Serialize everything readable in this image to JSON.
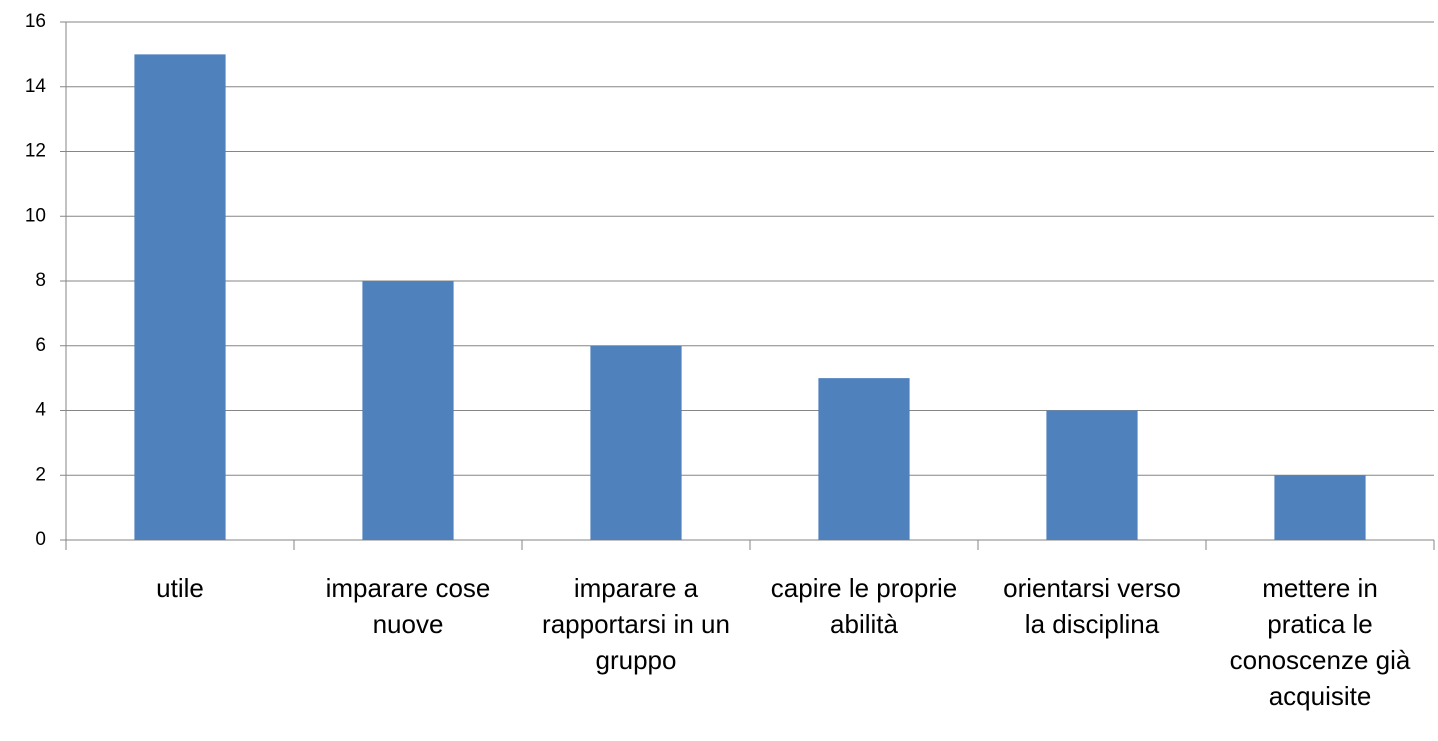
{
  "chart_data": {
    "type": "bar",
    "categories": [
      "utile",
      "imparare cose nuove",
      "imparare a rapportarsi in un gruppo",
      "capire le proprie abilità",
      "orientarsi verso la disciplina",
      "mettere in pratica le conoscenze già acquisite"
    ],
    "values": [
      15,
      8,
      6,
      5,
      4,
      2
    ],
    "color": "#4f81bd",
    "ylim": [
      0,
      16
    ],
    "yticks": [
      0,
      2,
      4,
      6,
      8,
      10,
      12,
      14,
      16
    ],
    "grid": true
  }
}
